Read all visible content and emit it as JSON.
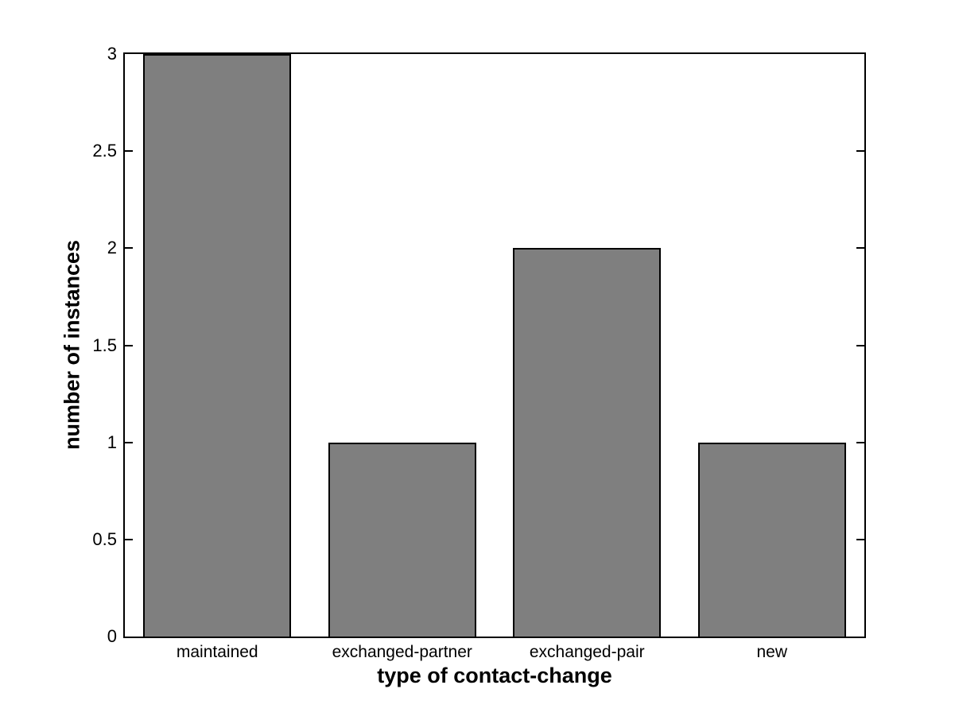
{
  "chart_data": {
    "type": "bar",
    "categories": [
      "maintained",
      "exchanged-partner",
      "exchanged-pair",
      "new"
    ],
    "values": [
      3,
      1,
      2,
      1
    ],
    "title": "",
    "xlabel": "type of contact-change",
    "ylabel": "number of instances",
    "ylim": [
      0,
      3
    ],
    "yticks": [
      0,
      0.5,
      1,
      1.5,
      2,
      2.5,
      3
    ],
    "ytick_labels": [
      "0",
      "0.5",
      "1",
      "1.5",
      "2",
      "2.5",
      "3"
    ],
    "bar_width_fraction": 0.8,
    "bar_fill_color": "#7f7f7f",
    "bar_edge_color": "#000000",
    "axis_color": "#000000",
    "background_color": "#ffffff",
    "grid": false,
    "legend": "none",
    "tick_direction": "in",
    "box": true
  }
}
